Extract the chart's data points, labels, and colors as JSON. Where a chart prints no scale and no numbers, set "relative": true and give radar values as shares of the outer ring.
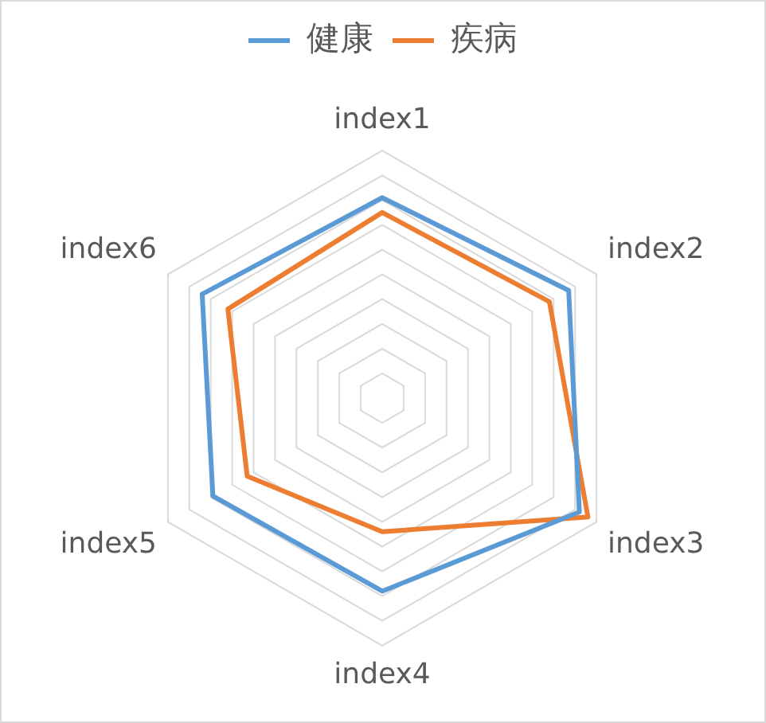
{
  "chart_data": {
    "type": "radar",
    "categories": [
      "index1",
      "index2",
      "index3",
      "index4",
      "index5",
      "index6"
    ],
    "relative": true,
    "series": [
      {
        "name": "健康",
        "color": "#5b9bd5",
        "values": [
          0.81,
          0.87,
          0.92,
          0.78,
          0.79,
          0.84
        ]
      },
      {
        "name": "疾病",
        "color": "#ed7d31",
        "values": [
          0.75,
          0.78,
          0.96,
          0.54,
          0.63,
          0.72
        ]
      }
    ],
    "grid": true,
    "legend": "top",
    "marker": "none"
  }
}
